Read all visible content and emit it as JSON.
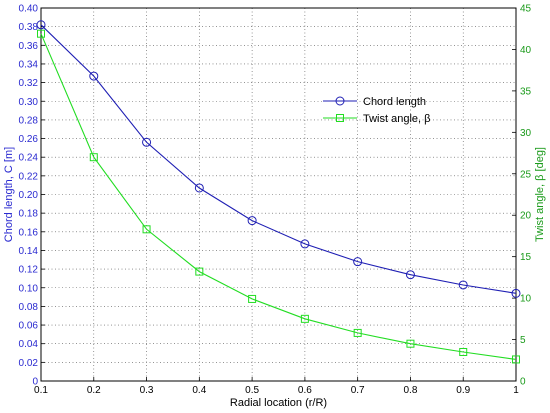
{
  "chart_data": {
    "type": "line",
    "xlabel": "Radial location (r/R)",
    "ylabel_left": "Chord length, C [m]",
    "ylabel_right": "Twist angle, β [deg]",
    "xlim": [
      0.1,
      1.0
    ],
    "ylim_left": [
      0,
      0.4
    ],
    "ylim_right": [
      0,
      45
    ],
    "x_ticks": [
      "0.1",
      "0.2",
      "0.3",
      "0.4",
      "0.5",
      "0.6",
      "0.7",
      "0.8",
      "0.9",
      "1"
    ],
    "y_left_ticks": [
      "0",
      "0.02",
      "0.04",
      "0.06",
      "0.08",
      "0.10",
      "0.12",
      "0.14",
      "0.16",
      "0.18",
      "0.20",
      "0.22",
      "0.24",
      "0.26",
      "0.28",
      "0.30",
      "0.32",
      "0.34",
      "0.36",
      "0.38",
      "0.40"
    ],
    "y_right_ticks": [
      "0",
      "5",
      "10",
      "15",
      "20",
      "25",
      "30",
      "35",
      "40",
      "45"
    ],
    "grid": true,
    "legend_position": "right, upper-middle",
    "x": [
      0.1,
      0.2,
      0.3,
      0.4,
      0.5,
      0.6,
      0.7,
      0.8,
      0.9,
      1.0
    ],
    "series": [
      {
        "name": "Chord length",
        "axis": "left",
        "marker": "circle",
        "color": "#1f1fb4",
        "values": [
          0.382,
          0.327,
          0.256,
          0.207,
          0.172,
          0.147,
          0.128,
          0.114,
          0.103,
          0.094
        ]
      },
      {
        "name": "Twist angle, β",
        "axis": "right",
        "marker": "square",
        "color": "#22dd22",
        "values": [
          41.9,
          27.0,
          18.3,
          13.2,
          9.9,
          7.5,
          5.8,
          4.5,
          3.5,
          2.6
        ]
      }
    ]
  }
}
